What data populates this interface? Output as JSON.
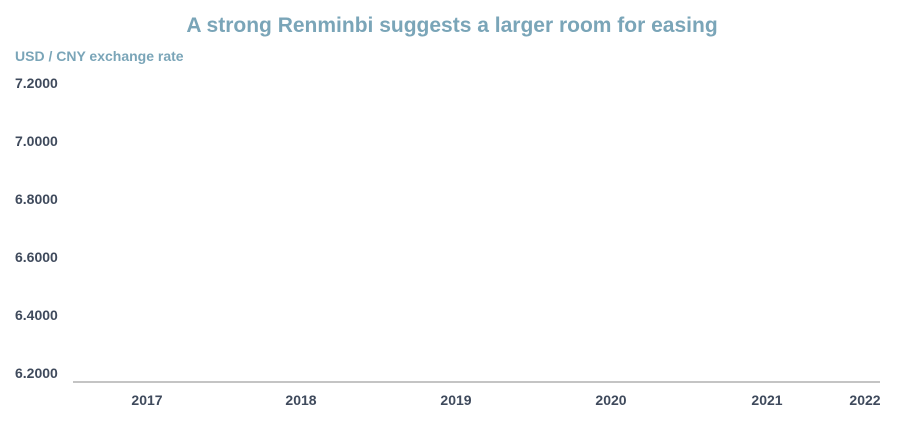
{
  "colors": {
    "title": "#7aa5b8",
    "axis_label": "#7aa5b8",
    "tick_text": "#3f4a5c",
    "axis_line": "#b0b0b0"
  },
  "chart_data": {
    "type": "line",
    "title": "A strong Renminbi suggests a larger room for easing",
    "xlabel": "",
    "ylabel": "USD / CNY exchange rate",
    "y_ticks": [
      "7.2000",
      "7.0000",
      "6.8000",
      "6.6000",
      "6.4000",
      "6.2000"
    ],
    "x_ticks": [
      "2017",
      "2018",
      "2019",
      "2020",
      "2021",
      "2022"
    ],
    "ylim": [
      6.2,
      7.2
    ],
    "grid": false,
    "series": []
  }
}
